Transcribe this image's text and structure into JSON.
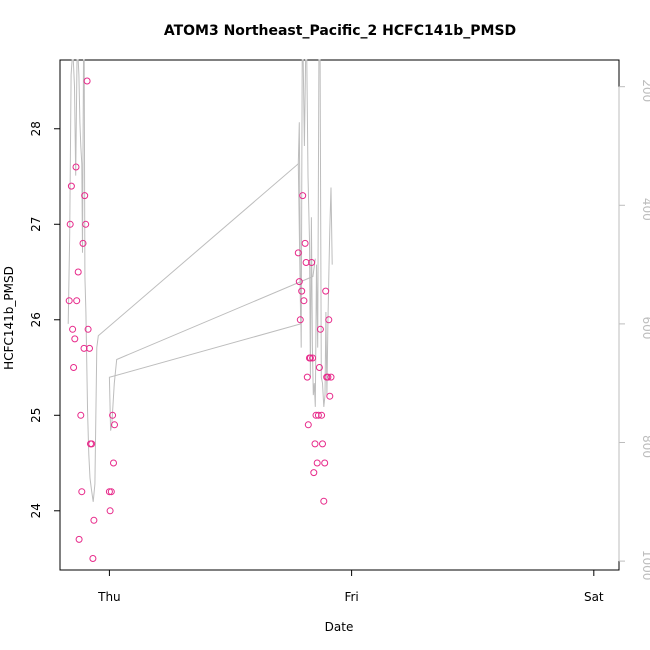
{
  "chart_data": {
    "type": "scatter",
    "title": "ATOM3 Northeast_Pacific_2 HCFC141b_PMSD",
    "xlabel": "Date",
    "ylabel": "HCFC141b_PMSD",
    "x_ticks": [
      "Thu",
      "Fri",
      "Sat"
    ],
    "x_tick_values": [
      1.0,
      2.0,
      3.0
    ],
    "xlim": [
      0.796,
      3.104
    ],
    "ylim": [
      23.38,
      28.72
    ],
    "y_ticks": [
      24,
      25,
      26,
      27,
      28
    ],
    "y_tick_labels": [
      "24",
      "25",
      "26",
      "27",
      "28"
    ],
    "right_axis": {
      "reversed": true,
      "ylim": [
        1015,
        155
      ],
      "ticks": [
        200,
        400,
        600,
        800,
        1000
      ],
      "tick_labels": [
        "200",
        "400",
        "600",
        "800",
        "1000"
      ],
      "color": "#bdbdbd"
    },
    "grid": false,
    "legend": "none",
    "series": [
      {
        "kind": "points",
        "color": "#e7298a",
        "x": [
          0.834,
          0.838,
          0.843,
          0.848,
          0.852,
          0.857,
          0.862,
          0.865,
          0.871,
          0.875,
          0.882,
          0.886,
          0.891,
          0.895,
          0.898,
          0.902,
          0.908,
          0.912,
          0.918,
          0.922,
          0.927,
          0.932,
          0.936,
          1.0,
          1.003,
          1.008,
          1.013,
          1.017,
          1.021,
          1.78,
          1.784,
          1.788,
          1.794,
          1.798,
          1.803,
          1.808,
          1.812,
          1.817,
          1.821,
          1.826,
          1.83,
          1.835,
          1.839,
          1.844,
          1.849,
          1.853,
          1.858,
          1.863,
          1.867,
          1.871,
          1.876,
          1.88,
          1.885,
          1.889,
          1.893,
          1.897,
          1.902,
          1.906,
          1.91,
          1.915
        ],
        "y": [
          26.2,
          27.0,
          27.4,
          25.9,
          25.5,
          25.8,
          27.6,
          26.2,
          26.5,
          23.7,
          25.0,
          24.2,
          26.8,
          25.7,
          27.3,
          27.0,
          28.5,
          25.9,
          25.7,
          24.7,
          24.7,
          23.5,
          23.9,
          24.2,
          24.0,
          24.2,
          25.0,
          24.5,
          24.9,
          26.7,
          26.4,
          26.0,
          26.3,
          27.3,
          26.2,
          26.8,
          26.6,
          25.4,
          24.9,
          25.6,
          25.6,
          26.6,
          25.6,
          24.4,
          24.7,
          25.0,
          24.5,
          25.0,
          25.5,
          25.9,
          25.0,
          24.7,
          24.1,
          24.5,
          26.3,
          25.4,
          25.4,
          26.0,
          25.2,
          25.4
        ]
      },
      {
        "kind": "line",
        "axis": "right",
        "color": "#bdbdbd",
        "x": [
          0.83,
          0.836,
          0.842,
          0.846,
          0.851,
          0.856,
          0.861,
          0.866,
          0.871,
          0.874,
          0.878,
          0.882,
          0.886,
          0.889,
          0.893,
          0.896,
          0.899,
          0.903,
          0.906,
          0.91,
          0.915,
          0.92,
          0.926,
          0.933,
          0.94,
          0.948,
          0.954,
          1.78,
          1.79,
          1.0,
          1.005,
          1.01,
          1.02,
          1.03,
          1.84,
          1.85
        ],
        "y": [
          600,
          450,
          180,
          155,
          155,
          200,
          350,
          155,
          155,
          180,
          260,
          300,
          330,
          480,
          155,
          155,
          520,
          580,
          650,
          750,
          820,
          860,
          880,
          900,
          870,
          640,
          620,
          330,
          600,
          690,
          780,
          770,
          700,
          660,
          520,
          490
        ]
      },
      {
        "kind": "line",
        "axis": "right",
        "color": "#bdbdbd",
        "x": [
          1.78,
          1.784,
          1.788,
          1.792,
          1.796,
          1.8,
          1.805,
          1.81,
          1.815,
          1.82,
          1.826,
          1.83,
          1.834,
          1.838,
          1.842,
          1.846,
          1.85,
          1.855,
          1.86,
          1.865,
          1.87,
          1.875,
          1.88,
          1.885,
          1.89,
          1.894,
          1.898,
          1.902,
          1.906,
          1.91,
          1.915,
          1.92
        ],
        "y": [
          330,
          260,
          500,
          640,
          155,
          155,
          300,
          155,
          155,
          350,
          460,
          690,
          420,
          640,
          720,
          700,
          740,
          500,
          640,
          155,
          155,
          690,
          700,
          740,
          720,
          580,
          720,
          600,
          520,
          440,
          370,
          500
        ]
      }
    ]
  }
}
